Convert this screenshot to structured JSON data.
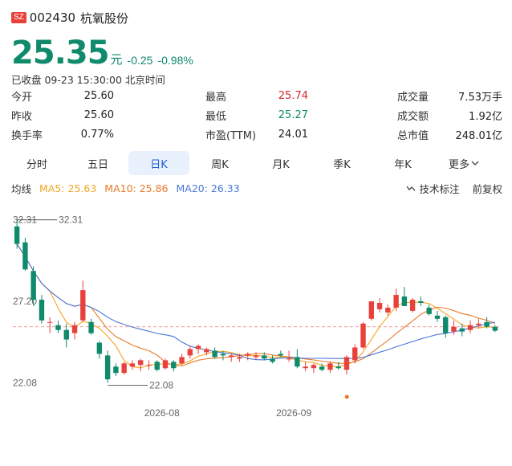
{
  "header": {
    "market_badge": "SZ",
    "code": "002430",
    "name": "杭氧股份",
    "price": "25.35",
    "unit": "元",
    "change": "-0.25",
    "change_pct": "-0.98%",
    "status": "已收盘 09-23 15:30:00 北京时间"
  },
  "stats": [
    {
      "label": "今开",
      "value": "25.60",
      "color": "dark"
    },
    {
      "label": "最高",
      "value": "25.74",
      "color": "red"
    },
    {
      "label": "成交量",
      "value": "7.53万手",
      "color": "dark"
    },
    {
      "label": "昨收",
      "value": "25.60",
      "color": "dark"
    },
    {
      "label": "最低",
      "value": "25.27",
      "color": "green"
    },
    {
      "label": "成交额",
      "value": "1.92亿",
      "color": "dark"
    },
    {
      "label": "换手率",
      "value": "0.77%",
      "color": "dark"
    },
    {
      "label": "市盈(TTM)",
      "value": "24.01",
      "color": "dark"
    },
    {
      "label": "总市值",
      "value": "248.01亿",
      "color": "dark"
    }
  ],
  "tabs": [
    {
      "label": "分时",
      "active": false
    },
    {
      "label": "五日",
      "active": false
    },
    {
      "label": "日K",
      "active": true
    },
    {
      "label": "周K",
      "active": false
    },
    {
      "label": "月K",
      "active": false
    },
    {
      "label": "季K",
      "active": false
    },
    {
      "label": "年K",
      "active": false
    },
    {
      "label": "更多",
      "active": false,
      "dropdown": true
    }
  ],
  "ma": {
    "label": "均线",
    "items": [
      {
        "text": "MA5: 25.63",
        "color": "#f5a623"
      },
      {
        "text": "MA10: 25.86",
        "color": "#ea7a2a"
      },
      {
        "text": "MA20: 26.33",
        "color": "#4a78d8"
      }
    ],
    "tech_label": "技术标注",
    "adjust_label": "前复权"
  },
  "chart_data": {
    "type": "candlestick",
    "y_ticks": [
      "32.31",
      "27.20",
      "22.08"
    ],
    "ylim": [
      21.5,
      33.0
    ],
    "x_ticks": [
      {
        "label": "2026-08",
        "index": 17
      },
      {
        "label": "2026-09",
        "index": 33
      }
    ],
    "max_annotation": {
      "value": "32.31",
      "index": 0
    },
    "min_annotation": {
      "value": "22.08",
      "index": 11
    },
    "ref_price": 25.6,
    "colors": {
      "up": "#e8413c",
      "down": "#0f8a6a",
      "ma5": "#f5a623",
      "ma10": "#ea7a2a",
      "ma20": "#4a78d8",
      "ref": "#e8413c"
    },
    "candles": [
      {
        "o": 31.9,
        "h": 32.31,
        "l": 30.5,
        "c": 30.8
      },
      {
        "o": 30.9,
        "h": 31.2,
        "l": 29.1,
        "c": 29.2
      },
      {
        "o": 29.1,
        "h": 29.4,
        "l": 26.9,
        "c": 27.3
      },
      {
        "o": 27.3,
        "h": 27.6,
        "l": 25.8,
        "c": 26.0
      },
      {
        "o": 25.9,
        "h": 26.2,
        "l": 25.2,
        "c": 25.9
      },
      {
        "o": 25.7,
        "h": 26.0,
        "l": 25.2,
        "c": 25.4
      },
      {
        "o": 25.4,
        "h": 25.8,
        "l": 24.3,
        "c": 24.8
      },
      {
        "o": 25.2,
        "h": 25.9,
        "l": 24.8,
        "c": 25.7
      },
      {
        "o": 26.0,
        "h": 28.5,
        "l": 25.9,
        "c": 27.9
      },
      {
        "o": 25.9,
        "h": 26.1,
        "l": 25.1,
        "c": 25.2
      },
      {
        "o": 24.6,
        "h": 24.7,
        "l": 23.6,
        "c": 23.9
      },
      {
        "o": 23.8,
        "h": 24.1,
        "l": 22.08,
        "c": 22.3
      },
      {
        "o": 23.1,
        "h": 23.3,
        "l": 22.5,
        "c": 22.7
      },
      {
        "o": 22.7,
        "h": 23.4,
        "l": 22.6,
        "c": 23.3
      },
      {
        "o": 23.1,
        "h": 23.5,
        "l": 22.9,
        "c": 23.3
      },
      {
        "o": 23.2,
        "h": 23.6,
        "l": 22.8,
        "c": 23.5
      },
      {
        "o": 23.2,
        "h": 23.5,
        "l": 22.9,
        "c": 23.2
      },
      {
        "o": 23.4,
        "h": 23.5,
        "l": 22.8,
        "c": 22.9
      },
      {
        "o": 23.0,
        "h": 23.6,
        "l": 22.9,
        "c": 23.5
      },
      {
        "o": 23.4,
        "h": 23.5,
        "l": 22.8,
        "c": 23.0
      },
      {
        "o": 23.3,
        "h": 23.9,
        "l": 23.2,
        "c": 23.7
      },
      {
        "o": 23.8,
        "h": 24.4,
        "l": 23.6,
        "c": 24.2
      },
      {
        "o": 24.2,
        "h": 24.5,
        "l": 23.9,
        "c": 24.4
      },
      {
        "o": 24.0,
        "h": 24.3,
        "l": 23.8,
        "c": 24.2
      },
      {
        "o": 24.1,
        "h": 24.3,
        "l": 23.6,
        "c": 23.7
      },
      {
        "o": 23.9,
        "h": 24.1,
        "l": 23.5,
        "c": 23.8
      },
      {
        "o": 23.7,
        "h": 23.9,
        "l": 23.4,
        "c": 23.8
      },
      {
        "o": 23.6,
        "h": 23.9,
        "l": 23.4,
        "c": 23.7
      },
      {
        "o": 23.8,
        "h": 24.0,
        "l": 23.5,
        "c": 23.9
      },
      {
        "o": 23.7,
        "h": 24.0,
        "l": 23.5,
        "c": 23.8
      },
      {
        "o": 23.8,
        "h": 24.0,
        "l": 23.5,
        "c": 23.6
      },
      {
        "o": 23.6,
        "h": 23.8,
        "l": 23.3,
        "c": 23.4
      },
      {
        "o": 23.9,
        "h": 24.1,
        "l": 23.7,
        "c": 23.8
      },
      {
        "o": 23.6,
        "h": 24.1,
        "l": 23.4,
        "c": 23.6
      },
      {
        "o": 23.7,
        "h": 24.2,
        "l": 23.0,
        "c": 23.1
      },
      {
        "o": 23.0,
        "h": 23.4,
        "l": 22.8,
        "c": 23.1
      },
      {
        "o": 23.0,
        "h": 23.3,
        "l": 22.7,
        "c": 23.2
      },
      {
        "o": 23.1,
        "h": 23.3,
        "l": 22.8,
        "c": 22.9
      },
      {
        "o": 22.9,
        "h": 23.4,
        "l": 22.7,
        "c": 23.3
      },
      {
        "o": 23.1,
        "h": 23.4,
        "l": 22.9,
        "c": 23.0
      }
    ],
    "candles_b": [
      {
        "o": 22.9,
        "h": 23.8,
        "l": 22.6,
        "c": 23.7
      },
      {
        "o": 23.5,
        "h": 24.5,
        "l": 23.3,
        "c": 24.3
      },
      {
        "o": 24.3,
        "h": 25.9,
        "l": 24.2,
        "c": 25.8
      },
      {
        "o": 26.1,
        "h": 27.2,
        "l": 26.0,
        "c": 27.2
      },
      {
        "o": 26.7,
        "h": 27.4,
        "l": 26.5,
        "c": 27.1
      },
      {
        "o": 26.5,
        "h": 27.0,
        "l": 26.3,
        "c": 26.8
      },
      {
        "o": 26.8,
        "h": 28.0,
        "l": 26.6,
        "c": 27.6
      },
      {
        "o": 27.5,
        "h": 28.1,
        "l": 26.9,
        "c": 26.9
      },
      {
        "o": 26.6,
        "h": 27.4,
        "l": 26.5,
        "c": 27.3
      },
      {
        "o": 27.2,
        "h": 27.5,
        "l": 26.9,
        "c": 27.1
      },
      {
        "o": 26.8,
        "h": 27.0,
        "l": 26.3,
        "c": 26.4
      },
      {
        "o": 26.3,
        "h": 26.6,
        "l": 25.9,
        "c": 26.1
      },
      {
        "o": 26.2,
        "h": 26.3,
        "l": 24.9,
        "c": 25.2
      },
      {
        "o": 25.3,
        "h": 26.0,
        "l": 25.1,
        "c": 25.6
      },
      {
        "o": 25.5,
        "h": 25.8,
        "l": 25.0,
        "c": 25.3
      },
      {
        "o": 25.4,
        "h": 26.0,
        "l": 25.2,
        "c": 25.7
      },
      {
        "o": 25.7,
        "h": 26.1,
        "l": 25.5,
        "c": 25.8
      },
      {
        "o": 25.9,
        "h": 26.2,
        "l": 25.5,
        "c": 25.6
      },
      {
        "o": 25.6,
        "h": 25.7,
        "l": 25.27,
        "c": 25.35
      }
    ]
  }
}
